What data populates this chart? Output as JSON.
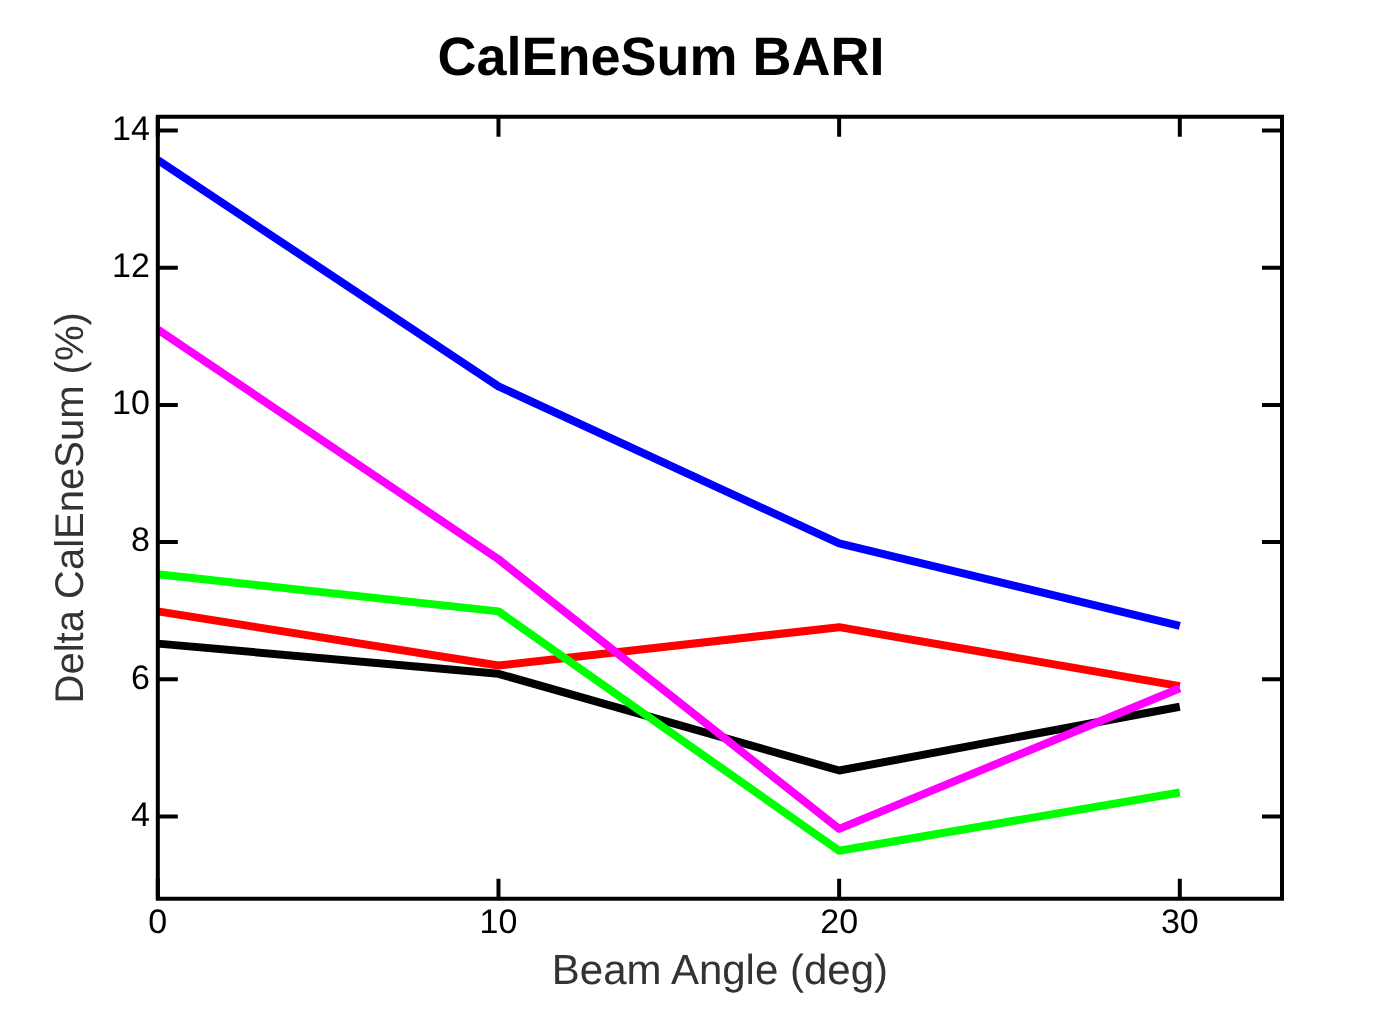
{
  "chart_data": {
    "type": "line",
    "title": "CalEneSum BARI",
    "xlabel": "Beam Angle (deg)",
    "ylabel": "Delta CalEneSum (%)",
    "x": [
      0,
      10,
      20,
      30
    ],
    "series": [
      {
        "color": "#0000ff",
        "values": [
          13.57,
          10.27,
          7.98,
          6.78
        ]
      },
      {
        "color": "#ff00ff",
        "values": [
          11.1,
          7.75,
          3.82,
          5.87
        ]
      },
      {
        "color": "#00ff00",
        "values": [
          7.53,
          6.99,
          3.5,
          4.35
        ]
      },
      {
        "color": "#ff0000",
        "values": [
          6.99,
          6.2,
          6.76,
          5.9
        ]
      },
      {
        "color": "#000000",
        "values": [
          6.52,
          6.08,
          4.67,
          5.6
        ]
      }
    ],
    "xlim": [
      0,
      33
    ],
    "xticks": [
      0,
      10,
      20,
      30
    ],
    "ylim": [
      2.8,
      14.2
    ],
    "yticks": [
      4,
      6,
      8,
      10,
      12,
      14
    ],
    "grid": false,
    "legend": false,
    "marker": "none",
    "line_style": "solid"
  }
}
